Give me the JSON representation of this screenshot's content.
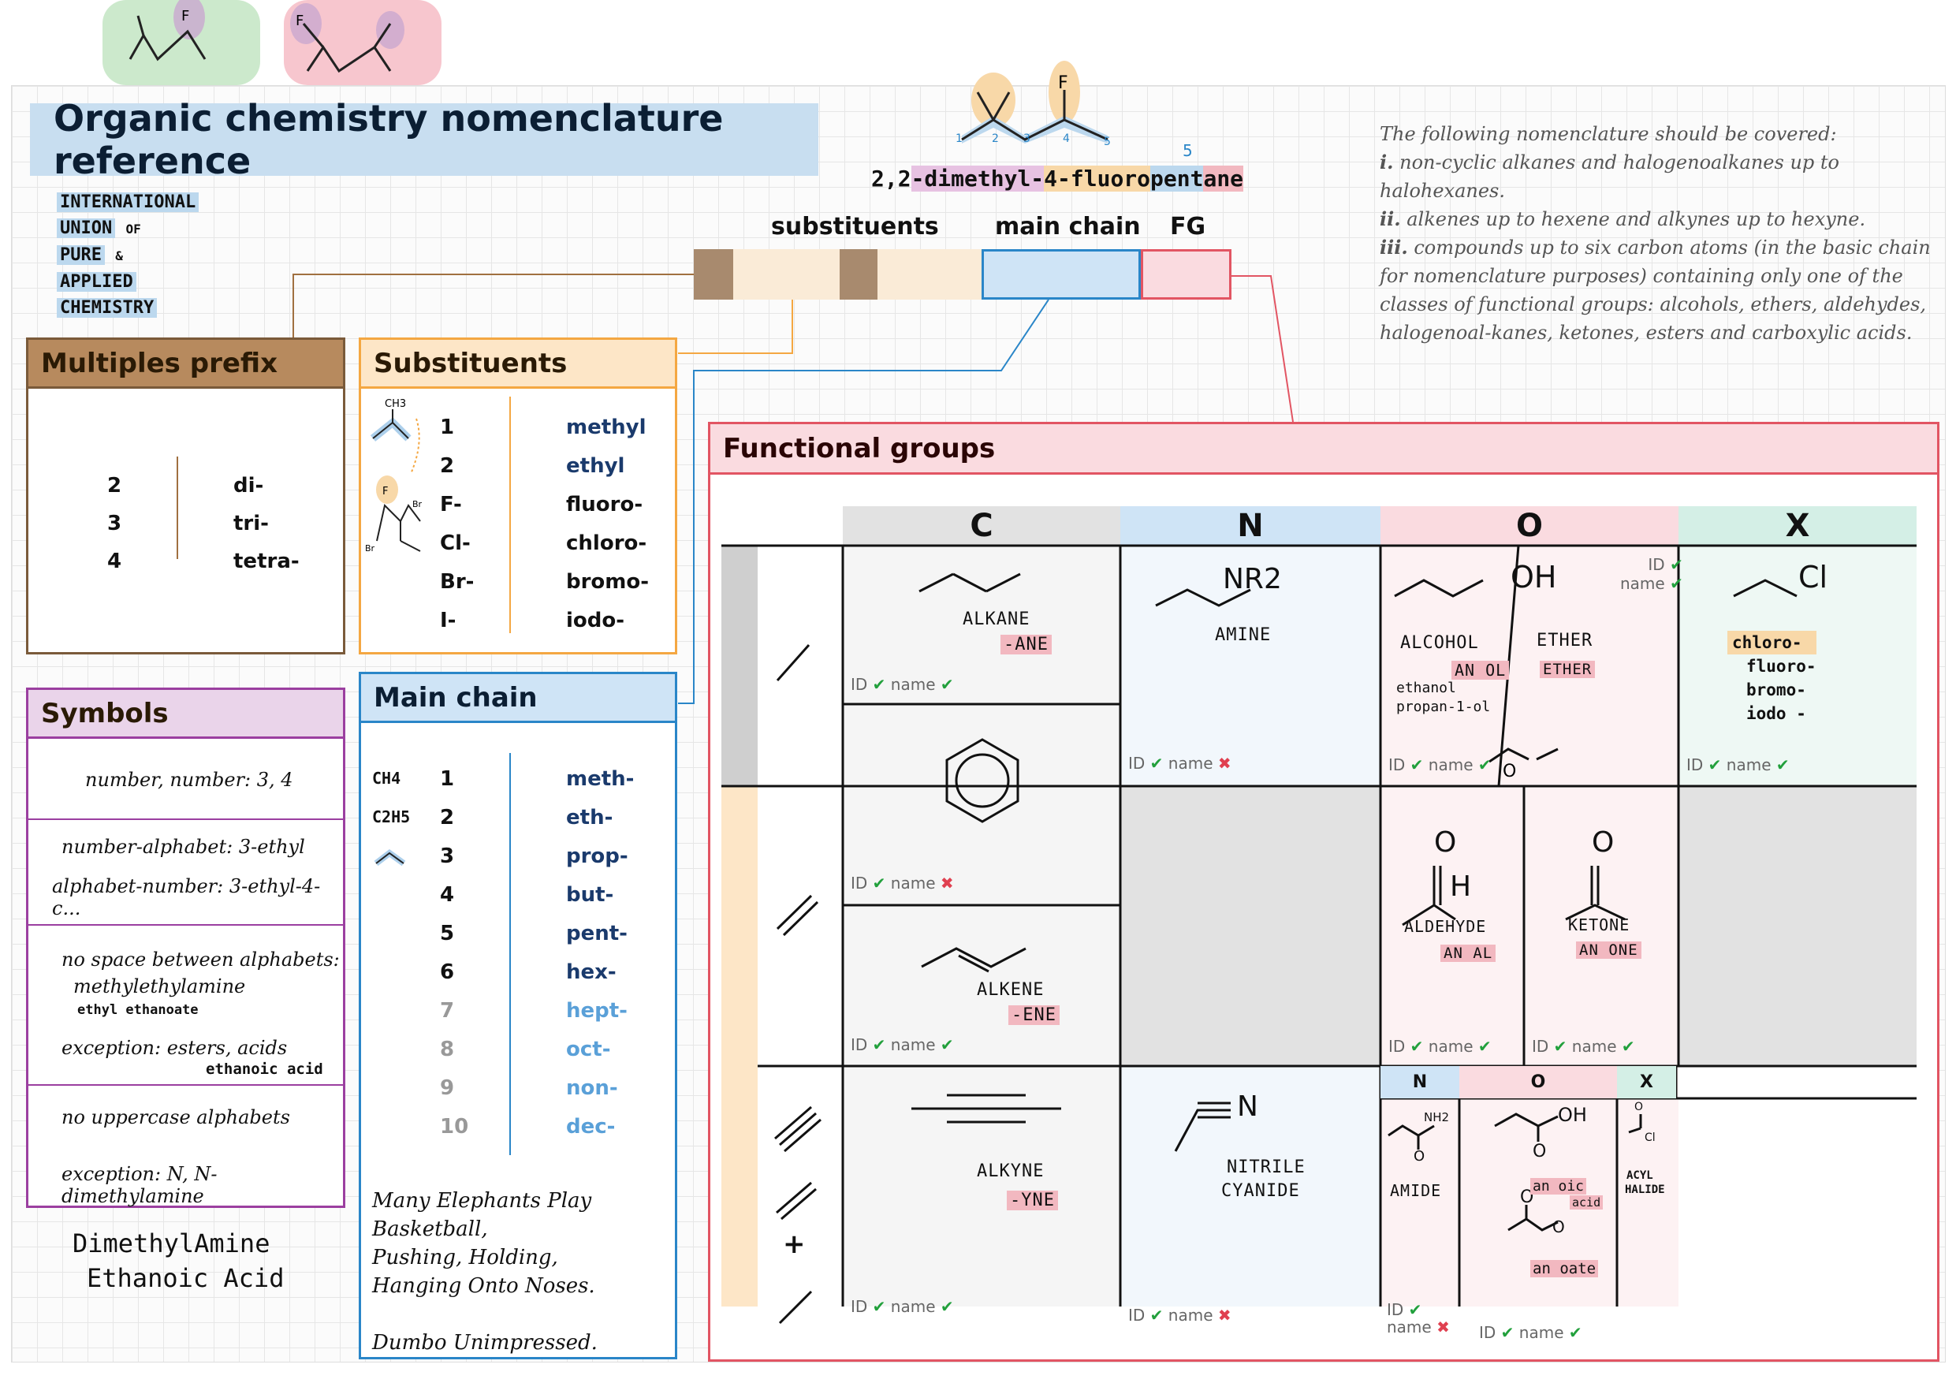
{
  "title": "Organic chemistry nomenclature reference",
  "iupac": [
    "INTERNATIONAL",
    "UNION",
    "OF",
    "PURE",
    "&",
    "APPLIED",
    "CHEMISTRY"
  ],
  "example_name": {
    "part1": "2,2",
    "part2": "-dimethyl-",
    "part3": "4",
    "part4": "-fluoro",
    "part5": "pent",
    "part6": "ane"
  },
  "chain_numbers": [
    "1",
    "2",
    "3",
    "4",
    "5",
    "5"
  ],
  "example_f": "F",
  "bar_labels": {
    "substituents": "substituents",
    "main_chain": "main chain",
    "fg": "FG"
  },
  "syllabus": {
    "intro": "The following nomenclature should be covered:",
    "i": "i.",
    "i_text": " non-cyclic alkanes and halogenoalkanes up to halohexanes.",
    "ii": "ii.",
    "ii_text": " alkenes up to hexene and alkynes up to hexyne.",
    "iii": "iii.",
    "iii_text": " compounds up to six carbon atoms (in the basic chain for nomenclature purposes) containing only one of the classes of functional groups: alcohols, ethers, aldehydes, halogenoal-kanes, ketones, esters and carboxylic acids."
  },
  "multiples": {
    "heading": "Multiples prefix",
    "rows": [
      {
        "n": "2",
        "p": "di-"
      },
      {
        "n": "3",
        "p": "tri-"
      },
      {
        "n": "4",
        "p": "tetra-"
      }
    ]
  },
  "substituents": {
    "heading": "Substituents",
    "sketch_labels": {
      "ch3": "CH3",
      "f": "F",
      "br": "Br",
      "br2": "Br"
    },
    "rows": [
      {
        "n": "1",
        "name": "methyl"
      },
      {
        "n": "2",
        "name": "ethyl"
      },
      {
        "n": "F-",
        "name": "fluoro-"
      },
      {
        "n": "Cl-",
        "name": "chloro-"
      },
      {
        "n": "Br-",
        "name": "bromo-"
      },
      {
        "n": "I-",
        "name": "iodo-"
      }
    ]
  },
  "symbols": {
    "heading": "Symbols",
    "s1": "number, number: 3, 4",
    "s2a": "number-alphabet: 3-ethyl",
    "s2b": "alphabet-number: 3-ethyl-4-c...",
    "s3a": "no space between alphabets:",
    "s3b": "methylethylamine",
    "s3c": "ethyl ethanoate",
    "s3d": "exception: esters, acids",
    "s3e": "ethanoic acid",
    "s4a": "no uppercase alphabets",
    "s4b": "exception: N, N-dimethylamine"
  },
  "mnemonic2": {
    "line1": "DimethylAmine",
    "line2": "Ethanoic Acid"
  },
  "main_chain": {
    "heading": "Main chain",
    "formula_labels": {
      "ch4": "CH4",
      "c2h5": "C2H5"
    },
    "rows": [
      {
        "n": "1",
        "p": "meth-"
      },
      {
        "n": "2",
        "p": "eth-"
      },
      {
        "n": "3",
        "p": "prop-"
      },
      {
        "n": "4",
        "p": "but-"
      },
      {
        "n": "5",
        "p": "pent-"
      },
      {
        "n": "6",
        "p": "hex-"
      },
      {
        "n": "7",
        "p": "hept-"
      },
      {
        "n": "8",
        "p": "oct-"
      },
      {
        "n": "9",
        "p": "non-"
      },
      {
        "n": "10",
        "p": "dec-"
      }
    ],
    "mnemonic": [
      "Many Elephants Play Basketball,",
      "Pushing, Holding,",
      "Hanging Onto Noses.",
      "Dumbo Unimpressed."
    ]
  },
  "functional_groups": {
    "heading": "Functional groups",
    "cols": [
      "C",
      "N",
      "O",
      "X"
    ],
    "id": "ID",
    "name": "name",
    "alkane": {
      "label": "ALKANE",
      "suffix": "-ANE"
    },
    "amine": {
      "label": "AMINE",
      "formula": "NR2"
    },
    "alcohol": {
      "label": "ALCOHOL",
      "suffix": "AN OL",
      "ex1": "ethanol",
      "ex2": "propan-1-ol",
      "formula": "OH"
    },
    "ether": {
      "label": "ETHER",
      "suffix": "ETHER",
      "atom": "O"
    },
    "halo": {
      "formula": "Cl",
      "items": [
        "chloro-",
        "fluoro-",
        "bromo-",
        "iodo -"
      ]
    },
    "alkene": {
      "label": "ALKENE",
      "suffix": "-ENE"
    },
    "aldehyde": {
      "label": "ALDEHYDE",
      "suffix": "AN AL",
      "o": "O",
      "h": "H"
    },
    "ketone": {
      "label": "KETONE",
      "suffix": "AN ONE",
      "o": "O"
    },
    "alkyne": {
      "label": "ALKYNE",
      "suffix": "-YNE"
    },
    "nitrile": {
      "label1": "NITRILE",
      "label2": "CYANIDE",
      "formula": "N"
    },
    "amide": {
      "label": "AMIDE",
      "formula": "NH2",
      "o": "O"
    },
    "acid": {
      "suffix1": "an oic",
      "suffix2": "acid",
      "formula": "OH",
      "o": "O"
    },
    "ester": {
      "suffix": "an oate",
      "o": "O",
      "o2": "O"
    },
    "acyl": {
      "label1": "ACYL",
      "label2": "HALIDE",
      "formula": "Cl",
      "o": "O"
    },
    "sub_cols": [
      "N",
      "O",
      "X"
    ],
    "plus": "+"
  },
  "colors": {
    "multiples": "#b78a5e",
    "substituents": "#f4a742",
    "symbols": "#9b3fa0",
    "main_chain": "#2a86c8",
    "fg": "#e25563"
  }
}
